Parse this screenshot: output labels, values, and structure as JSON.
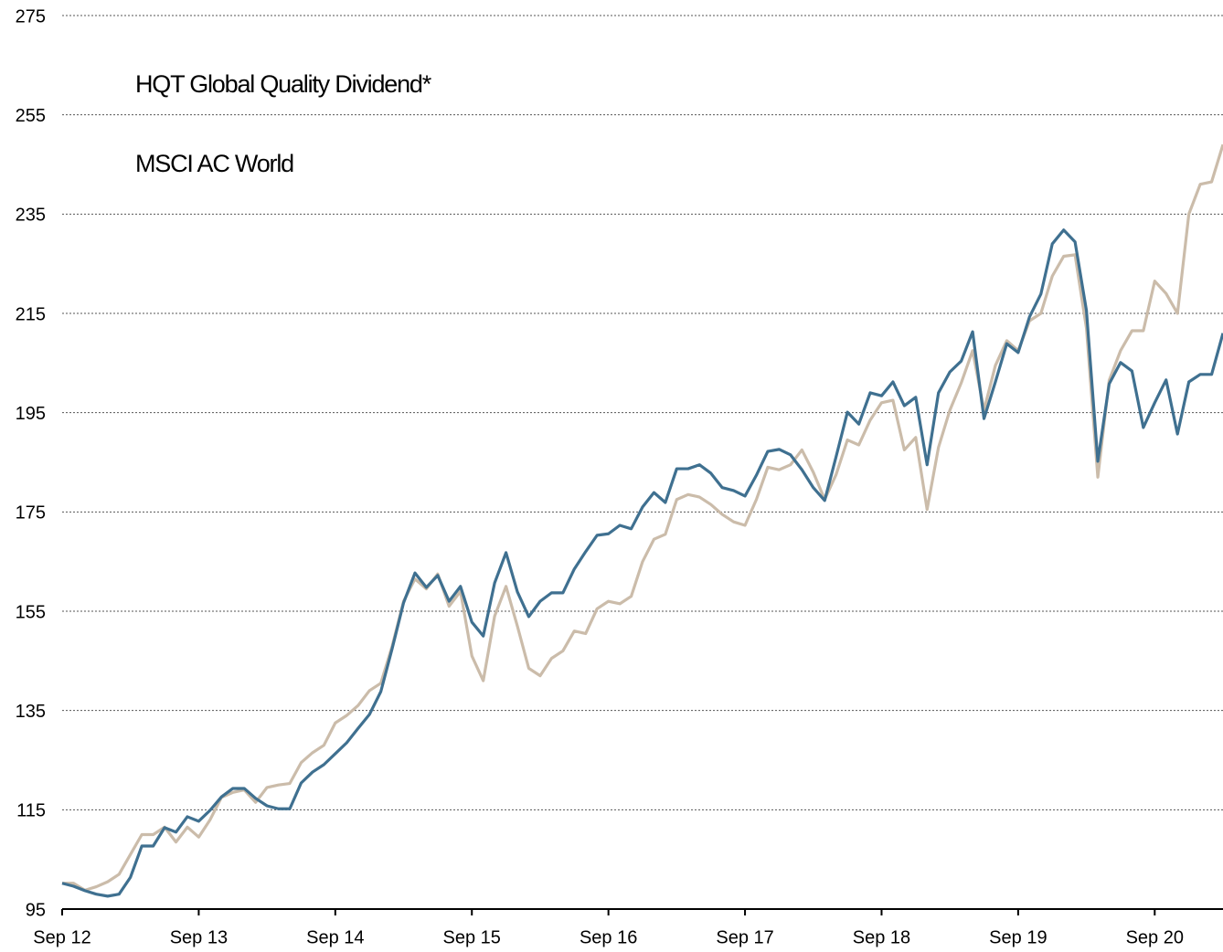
{
  "chart_data": {
    "type": "line",
    "x": [
      0,
      1,
      2,
      3,
      4,
      5,
      6,
      7,
      8,
      9,
      10,
      11,
      12,
      13,
      14,
      15,
      16,
      17,
      18,
      19,
      20,
      21,
      22,
      23,
      24,
      25,
      26,
      27,
      28,
      29,
      30,
      31,
      32,
      33,
      34,
      35,
      36,
      37,
      38,
      39,
      40,
      41,
      42,
      43,
      44,
      45,
      46,
      47,
      48,
      49,
      50,
      51,
      52,
      53,
      54,
      55,
      56,
      57,
      58,
      59,
      60,
      61,
      62,
      63,
      64,
      65,
      66,
      67,
      68,
      69,
      70,
      71,
      72,
      73,
      74,
      75,
      76,
      77,
      78,
      79,
      80,
      81,
      82,
      83,
      84,
      85,
      86,
      87,
      88,
      89,
      90,
      91,
      92,
      93,
      94,
      95,
      96,
      97,
      98,
      99,
      100,
      101,
      102
    ],
    "series": [
      {
        "name": "HQT Global Quality Dividend*",
        "color": "#3f7090",
        "values": [
          100.2,
          99.6,
          98.7,
          98,
          97.6,
          98,
          101.4,
          107.7,
          107.7,
          111.4,
          110.5,
          113.6,
          112.7,
          114.9,
          117.6,
          119.3,
          119.3,
          117.3,
          115.8,
          115.2,
          115.2,
          120.4,
          122.6,
          124.1,
          126.3,
          128.5,
          131.4,
          134.2,
          138.8,
          147.5,
          156.7,
          162.7,
          159.8,
          162.2,
          157,
          160,
          152.8,
          150,
          160.7,
          166.8,
          158.9,
          153.9,
          157,
          158.7,
          158.7,
          163.5,
          167,
          170.3,
          170.6,
          172.3,
          171.6,
          176,
          178.9,
          176.9,
          183.7,
          183.7,
          184.5,
          182.8,
          179.9,
          179.3,
          178.2,
          182.4,
          187.2,
          187.6,
          186.5,
          183.5,
          179.9,
          177.3,
          186.1,
          195.1,
          192.7,
          199,
          198.4,
          201.2,
          196.4,
          198.1,
          184.5,
          199,
          203.2,
          205.4,
          211.3,
          193.8,
          201.2,
          208.9,
          207.1,
          214.3,
          218.9,
          229,
          231.8,
          229.4,
          215.6,
          185.2,
          200.8,
          205.1,
          203.4,
          192,
          197,
          201.6,
          190.7,
          201.2,
          202.7,
          202.7,
          211
        ]
      },
      {
        "name": "MSCI AC World",
        "color": "#cbbcaa",
        "values": [
          100.2,
          100.2,
          98.8,
          99.5,
          100.5,
          102,
          106,
          110,
          110,
          111.5,
          108.5,
          111.5,
          109.5,
          113,
          117.5,
          118.5,
          119,
          116.5,
          119.5,
          120,
          120.3,
          124.5,
          126.5,
          128,
          132.5,
          134,
          136,
          139,
          140.5,
          148,
          157,
          161.5,
          159.5,
          162.5,
          156,
          159,
          146,
          141,
          154,
          160,
          152,
          143.5,
          142,
          145.5,
          147,
          151,
          150.5,
          155.5,
          157,
          156.5,
          158,
          165,
          169.5,
          170.5,
          177.5,
          178.5,
          178,
          176.5,
          174.5,
          173,
          172.3,
          177.5,
          184,
          183.5,
          184.5,
          187.5,
          183,
          177.5,
          182.5,
          189.5,
          188.5,
          193.5,
          197,
          197.5,
          187.5,
          190,
          175.5,
          188,
          195.5,
          201,
          207.5,
          195.5,
          204.5,
          209.5,
          207.5,
          213.5,
          215,
          222.5,
          226.5,
          226.8,
          212,
          182,
          201.5,
          207.5,
          211.5,
          211.5,
          221.5,
          219,
          215,
          235,
          241,
          241.5,
          249
        ]
      }
    ],
    "xlim": [
      0,
      102
    ],
    "xticks": [
      {
        "value": 0,
        "label": "Sep 12"
      },
      {
        "value": 12,
        "label": "Sep 13"
      },
      {
        "value": 24,
        "label": "Sep 14"
      },
      {
        "value": 36,
        "label": "Sep 15"
      },
      {
        "value": 48,
        "label": "Sep 16"
      },
      {
        "value": 60,
        "label": "Sep 17"
      },
      {
        "value": 72,
        "label": "Sep 18"
      },
      {
        "value": 84,
        "label": "Sep 19"
      },
      {
        "value": 96,
        "label": "Sep 20"
      }
    ],
    "ylim": [
      95,
      275
    ],
    "yticks": [
      95,
      115,
      135,
      155,
      175,
      195,
      215,
      235,
      255,
      275
    ],
    "grid": true
  }
}
